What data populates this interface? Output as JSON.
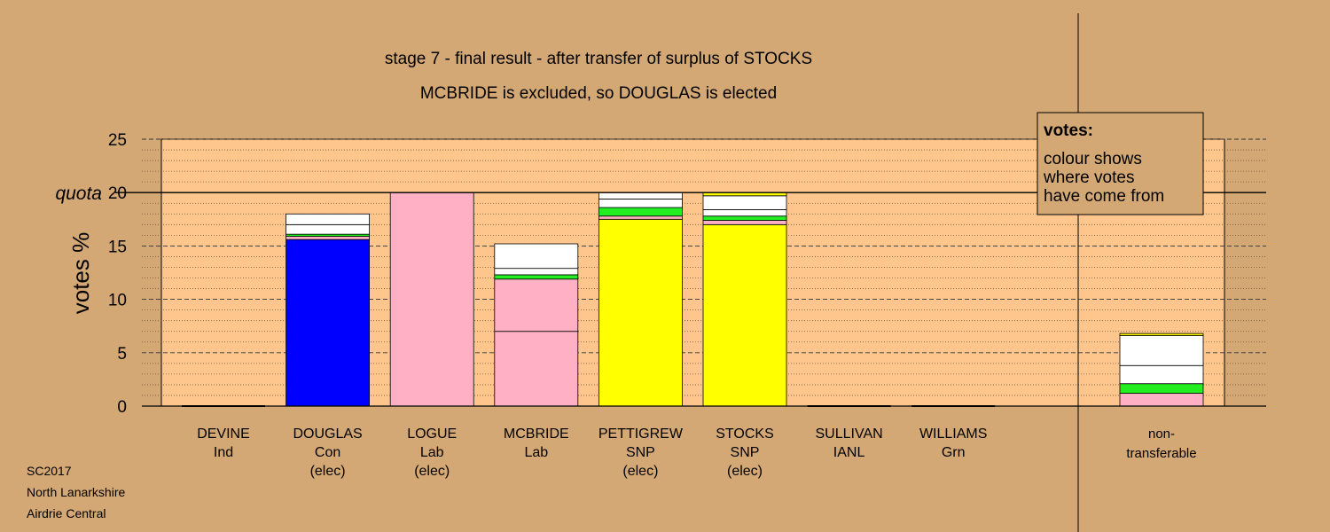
{
  "chart_data": {
    "type": "bar",
    "stacked": true,
    "title": "stage 7 - final result - after transfer of surplus of STOCKS",
    "subtitle": "MCBRIDE is excluded, so DOUGLAS is elected",
    "ylabel": "votes %",
    "ylim": [
      0,
      25
    ],
    "yticks": [
      0,
      5,
      10,
      15,
      20,
      25
    ],
    "quota": 20,
    "quota_label": "quota",
    "grid": true,
    "colors": {
      "background": "#d4a874",
      "plot": "#fec68c",
      "blue": "#0000ff",
      "pink": "#ffb0c4",
      "yellow": "#ffff00",
      "green": "#22ee22",
      "white": "#ffffff"
    },
    "candidates": [
      {
        "name": "DEVINE",
        "party": "Ind",
        "status": "",
        "segments": []
      },
      {
        "name": "DOUGLAS",
        "party": "Con",
        "status": "(elec)",
        "segments": [
          {
            "color": "blue",
            "value": 15.6
          },
          {
            "color": "pink",
            "value": 0.3
          },
          {
            "color": "green",
            "value": 0.2
          },
          {
            "color": "white",
            "value": 0.9
          },
          {
            "color": "white",
            "value": 1.0
          }
        ]
      },
      {
        "name": "LOGUE",
        "party": "Lab",
        "status": "(elec)",
        "segments": [
          {
            "color": "pink",
            "value": 20.0
          }
        ]
      },
      {
        "name": "MCBRIDE",
        "party": "Lab",
        "status": "",
        "segments": [
          {
            "color": "pink",
            "value": 7.0
          },
          {
            "color": "pink",
            "value": 4.9
          },
          {
            "color": "green",
            "value": 0.4
          },
          {
            "color": "white",
            "value": 0.6
          },
          {
            "color": "white",
            "value": 2.3
          }
        ]
      },
      {
        "name": "PETTIGREW",
        "party": "SNP",
        "status": "(elec)",
        "segments": [
          {
            "color": "yellow",
            "value": 17.5
          },
          {
            "color": "pink",
            "value": 0.3
          },
          {
            "color": "green",
            "value": 0.8
          },
          {
            "color": "white",
            "value": 0.8
          },
          {
            "color": "white",
            "value": 0.6
          }
        ]
      },
      {
        "name": "STOCKS",
        "party": "SNP",
        "status": "(elec)",
        "segments": [
          {
            "color": "yellow",
            "value": 17.0
          },
          {
            "color": "pink",
            "value": 0.4
          },
          {
            "color": "green",
            "value": 0.4
          },
          {
            "color": "white",
            "value": 0.6
          },
          {
            "color": "white",
            "value": 1.3
          },
          {
            "color": "yellow",
            "value": 0.3
          }
        ]
      },
      {
        "name": "SULLIVAN",
        "party": "IANL",
        "status": "",
        "segments": []
      },
      {
        "name": "WILLIAMS",
        "party": "Grn",
        "status": "",
        "segments": []
      }
    ],
    "nontransferable": {
      "label1": "non-",
      "label2": "transferable",
      "segments": [
        {
          "color": "pink",
          "value": 1.2
        },
        {
          "color": "green",
          "value": 0.9
        },
        {
          "color": "white",
          "value": 1.7
        },
        {
          "color": "white",
          "value": 2.8
        },
        {
          "color": "yellow",
          "value": 0.2
        }
      ]
    },
    "legend": {
      "title": "votes:",
      "lines": [
        "colour shows",
        "where votes",
        "have come from"
      ],
      "placement": "top-right"
    }
  },
  "footer": [
    "SC2017",
    "North Lanarkshire",
    "Airdrie Central"
  ]
}
